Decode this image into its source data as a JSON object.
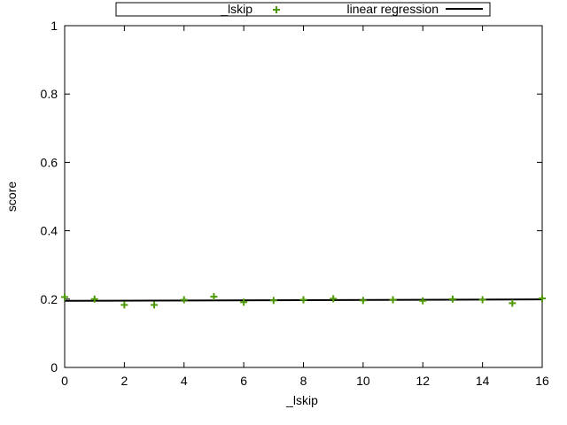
{
  "chart_data": {
    "type": "scatter",
    "xlabel": "_lskip",
    "ylabel": "score",
    "xlim": [
      0,
      16
    ],
    "ylim": [
      0,
      1
    ],
    "xticks": [
      0,
      2,
      4,
      6,
      8,
      10,
      12,
      14,
      16
    ],
    "yticks": [
      0,
      0.2,
      0.4,
      0.6,
      0.8,
      1
    ],
    "ytick_labels": [
      "0",
      "0.2",
      "0.4",
      "0.6",
      "0.8",
      "1"
    ],
    "grid": false,
    "legend_position": "top-center",
    "series": [
      {
        "name": "_lskip",
        "kind": "points",
        "marker": "plus",
        "color": "#4e9a06",
        "x": [
          0,
          1,
          2,
          3,
          4,
          5,
          6,
          7,
          8,
          9,
          10,
          11,
          12,
          13,
          14,
          15,
          16
        ],
        "y": [
          0.206,
          0.2,
          0.183,
          0.183,
          0.198,
          0.207,
          0.191,
          0.196,
          0.198,
          0.201,
          0.196,
          0.198,
          0.195,
          0.2,
          0.198,
          0.188,
          0.202
        ]
      },
      {
        "name": "linear regression",
        "kind": "line",
        "color": "#000000",
        "x": [
          0,
          16
        ],
        "y": [
          0.195,
          0.199
        ]
      }
    ]
  }
}
